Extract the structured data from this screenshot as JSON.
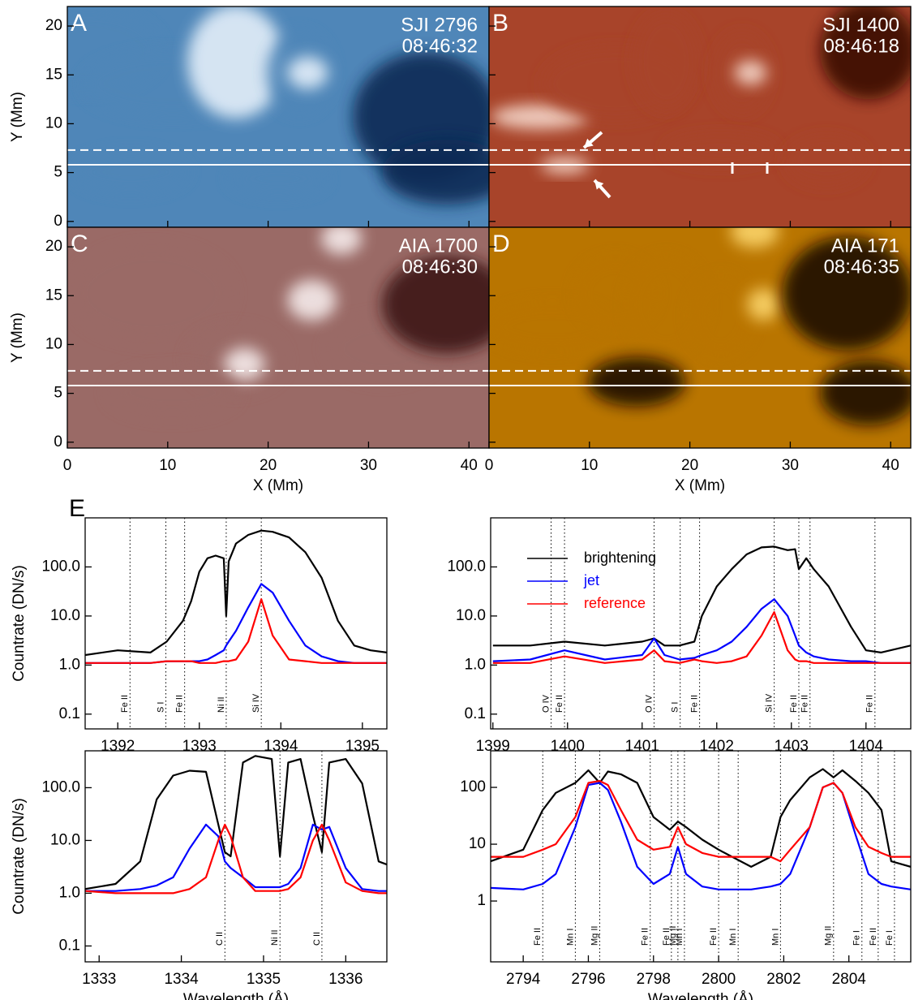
{
  "chart_data": [
    {
      "type": "image",
      "panel_label": "A",
      "channel": "SJI 2796",
      "time": "08:46:32",
      "ylabel": "Y (Mm)",
      "xlim": [
        0,
        42
      ],
      "ylim": [
        -0.6,
        22
      ],
      "xticks": [
        0,
        10,
        20,
        30,
        40
      ],
      "yticks": [
        0,
        5,
        10,
        15,
        20
      ],
      "colormap": [
        "#0a2c55",
        "#4f86b8",
        "#e4eff9"
      ],
      "hlines": [
        {
          "y": 7.3,
          "style": "dashed"
        },
        {
          "y": 5.8,
          "style": "solid"
        }
      ]
    },
    {
      "type": "image",
      "panel_label": "B",
      "channel": "SJI 1400",
      "time": "08:46:18",
      "xlim": [
        0,
        42
      ],
      "ylim": [
        -0.6,
        22
      ],
      "xticks": [
        0,
        10,
        20,
        30,
        40
      ],
      "yticks": [
        0,
        5,
        10,
        15,
        20
      ],
      "colormap": [
        "#3a0c03",
        "#a8442a",
        "#f6d9cc"
      ],
      "hlines": [
        {
          "y": 7.3,
          "style": "dashed"
        },
        {
          "y": 5.8,
          "style": "solid"
        }
      ]
    },
    {
      "type": "image",
      "panel_label": "C",
      "channel": "AIA 1700",
      "time": "08:46:30",
      "ylabel": "Y (Mm)",
      "xlabel": "X (Mm)",
      "xlim": [
        0,
        42
      ],
      "ylim": [
        -0.6,
        22
      ],
      "xticks": [
        0,
        10,
        20,
        30,
        40
      ],
      "yticks": [
        0,
        5,
        10,
        15,
        20
      ],
      "colormap": [
        "#3e1713",
        "#9a6a66",
        "#f5ebeb"
      ],
      "hlines": [
        {
          "y": 7.3,
          "style": "dashed"
        },
        {
          "y": 5.8,
          "style": "solid"
        }
      ]
    },
    {
      "type": "image",
      "panel_label": "D",
      "channel": "AIA 171",
      "time": "08:46:35",
      "xlabel": "X (Mm)",
      "xlim": [
        0,
        42
      ],
      "ylim": [
        -0.6,
        22
      ],
      "xticks": [
        0,
        10,
        20,
        30,
        40
      ],
      "yticks": [
        0,
        5,
        10,
        15,
        20
      ],
      "colormap": [
        "#1a1000",
        "#b97500",
        "#fbd46a"
      ],
      "hlines": [
        {
          "y": 7.3,
          "style": "dashed"
        },
        {
          "y": 5.8,
          "style": "solid"
        }
      ]
    },
    {
      "type": "line",
      "panel_label": "E",
      "ylabel": "Countrate (DN/s)",
      "log_y": true,
      "xlim": [
        1391.6,
        1395.3
      ],
      "ylim": [
        0.05,
        1000
      ],
      "xticks": [
        1392,
        1393,
        1394,
        1395
      ],
      "yticks": [
        0.1,
        {
          "value": 1,
          "label": "1.0"
        },
        {
          "value": 10,
          "label": "10.0"
        },
        {
          "value": 100,
          "label": "100.0"
        }
      ],
      "x": [
        1391.6,
        1392.0,
        1392.4,
        1392.6,
        1392.8,
        1392.9,
        1393.0,
        1393.1,
        1393.2,
        1393.3,
        1393.33,
        1393.36,
        1393.45,
        1393.6,
        1393.76,
        1393.9,
        1394.1,
        1394.3,
        1394.5,
        1394.7,
        1394.9,
        1395.1,
        1395.3
      ],
      "series": [
        {
          "color": "#000000",
          "values": [
            1.6,
            2,
            1.8,
            3,
            8,
            20,
            80,
            150,
            170,
            150,
            10,
            130,
            300,
            450,
            550,
            520,
            400,
            200,
            60,
            8,
            2.5,
            2,
            1.8
          ]
        },
        {
          "color": "#0000ff",
          "values": [
            1.1,
            1.1,
            1.1,
            1.2,
            1.2,
            1.2,
            1.2,
            1.3,
            1.6,
            2,
            2.5,
            3,
            5,
            15,
            45,
            30,
            8,
            2.5,
            1.5,
            1.2,
            1.1,
            1.1,
            1.1
          ]
        },
        {
          "color": "#ff0000",
          "values": [
            1.1,
            1.1,
            1.1,
            1.2,
            1.2,
            1.2,
            1.1,
            1.1,
            1.1,
            1.2,
            1.2,
            1.2,
            1.3,
            3,
            22,
            4,
            1.3,
            1.2,
            1.1,
            1.1,
            1.1,
            1.1,
            1.1
          ]
        }
      ],
      "lines": [
        {
          "label": "Fe II",
          "x": 1392.15
        },
        {
          "label": "S I",
          "x": 1392.59
        },
        {
          "label": "Fe II",
          "x": 1392.82
        },
        {
          "label": "Ni II",
          "x": 1393.33
        },
        {
          "label": "Si IV",
          "x": 1393.76
        }
      ]
    },
    {
      "type": "line",
      "log_y": true,
      "legend": "upper left",
      "xlim": [
        1398.97,
        1404.6
      ],
      "ylim": [
        0.05,
        1000
      ],
      "xticks": [
        1399,
        1400,
        1401,
        1402,
        1403,
        1404
      ],
      "yticks": [
        0.1,
        {
          "value": 1,
          "label": "1.0"
        },
        {
          "value": 10,
          "label": "10.0"
        },
        {
          "value": 100,
          "label": "100.0"
        }
      ],
      "x": [
        1399.0,
        1399.5,
        1399.96,
        1400.5,
        1401.0,
        1401.16,
        1401.3,
        1401.5,
        1401.7,
        1401.8,
        1402.0,
        1402.2,
        1402.4,
        1402.6,
        1402.77,
        1402.95,
        1403.05,
        1403.1,
        1403.2,
        1403.3,
        1403.5,
        1403.8,
        1404.0,
        1404.2,
        1404.6
      ],
      "series": [
        {
          "name": "brightening",
          "color": "#000000",
          "values": [
            2.5,
            2.5,
            3,
            2.5,
            3,
            3.5,
            2.5,
            2.5,
            3,
            10,
            40,
            90,
            180,
            250,
            260,
            220,
            230,
            90,
            150,
            90,
            40,
            6,
            2,
            1.8,
            2.5
          ]
        },
        {
          "name": "jet",
          "color": "#0000ff",
          "values": [
            1.2,
            1.3,
            2,
            1.3,
            1.6,
            3.5,
            1.6,
            1.3,
            1.4,
            1.6,
            2,
            3,
            6,
            14,
            22,
            10,
            4,
            2.5,
            1.8,
            1.5,
            1.3,
            1.2,
            1.2,
            1.1,
            1.1
          ]
        },
        {
          "name": "reference",
          "color": "#ff0000",
          "values": [
            1.1,
            1.1,
            1.5,
            1.1,
            1.3,
            2,
            1.2,
            1.1,
            1.3,
            1.2,
            1.1,
            1.2,
            1.5,
            4,
            12,
            2,
            1.3,
            1.2,
            1.2,
            1.1,
            1.1,
            1.1,
            1.1,
            1.1,
            1.1
          ]
        }
      ],
      "lines": [
        {
          "label": "O IV",
          "x": 1399.78
        },
        {
          "label": "Fe II",
          "x": 1399.96
        },
        {
          "label": "O IV",
          "x": 1401.16
        },
        {
          "label": "S I",
          "x": 1401.51
        },
        {
          "label": "Fe II",
          "x": 1401.77
        },
        {
          "label": "Si IV",
          "x": 1402.77
        },
        {
          "label": "Fe II",
          "x": 1403.1
        },
        {
          "label": "Fe II",
          "x": 1403.25
        },
        {
          "label": "Fe II",
          "x": 1404.12
        }
      ]
    },
    {
      "type": "line",
      "ylabel": "Countrate (DN/s)",
      "xlabel": "Wavelength (Å)",
      "log_y": true,
      "xlim": [
        1332.83,
        1336.5
      ],
      "ylim": [
        0.05,
        500
      ],
      "xticks": [
        1333,
        1334,
        1335,
        1336
      ],
      "yticks": [
        0.1,
        {
          "value": 1,
          "label": "1.0"
        },
        {
          "value": 10,
          "label": "10.0"
        },
        {
          "value": 100,
          "label": "100.0"
        }
      ],
      "x": [
        1332.83,
        1333.2,
        1333.5,
        1333.7,
        1333.9,
        1334.1,
        1334.3,
        1334.45,
        1334.53,
        1334.6,
        1334.75,
        1334.9,
        1335.1,
        1335.2,
        1335.3,
        1335.45,
        1335.6,
        1335.71,
        1335.8,
        1336.0,
        1336.2,
        1336.4,
        1336.5
      ],
      "series": [
        {
          "color": "#000000",
          "values": [
            1.2,
            1.5,
            4,
            60,
            170,
            210,
            200,
            20,
            6,
            5,
            300,
            400,
            350,
            5,
            300,
            350,
            30,
            6,
            300,
            350,
            120,
            4,
            3.5
          ]
        },
        {
          "color": "#0000ff",
          "values": [
            1.1,
            1.1,
            1.2,
            1.4,
            2,
            7,
            20,
            12,
            4,
            3,
            2,
            1.3,
            1.3,
            1.3,
            1.5,
            3,
            20,
            16,
            18,
            3,
            1.2,
            1.1,
            1.1
          ]
        },
        {
          "color": "#ff0000",
          "values": [
            1.1,
            1.0,
            1.0,
            1.0,
            1.0,
            1.2,
            2,
            10,
            20,
            12,
            2,
            1.1,
            1.1,
            1.1,
            1.2,
            2,
            10,
            20,
            10,
            1.6,
            1.1,
            1.0,
            1.0
          ]
        }
      ],
      "lines": [
        {
          "label": "C II",
          "x": 1334.53
        },
        {
          "label": "Ni II",
          "x": 1335.2
        },
        {
          "label": "C II",
          "x": 1335.71
        }
      ]
    },
    {
      "type": "line",
      "xlabel": "Wavelength (Å)",
      "log_y": true,
      "xlim": [
        2793,
        2805.9
      ],
      "ylim": [
        0.085,
        440
      ],
      "xticks": [
        2794,
        2796,
        2798,
        2800,
        2802,
        2804
      ],
      "yticks": [
        1,
        10,
        100
      ],
      "x": [
        2793.0,
        2794.0,
        2794.6,
        2795.0,
        2795.6,
        2796.0,
        2796.35,
        2796.6,
        2797.0,
        2797.5,
        2798.0,
        2798.5,
        2798.75,
        2799.0,
        2799.5,
        2800.0,
        2801.0,
        2801.6,
        2801.9,
        2802.2,
        2802.8,
        2803.2,
        2803.53,
        2803.8,
        2804.2,
        2804.6,
        2805.0,
        2805.3,
        2805.9
      ],
      "series": [
        {
          "color": "#000000",
          "values": [
            5,
            8,
            40,
            80,
            120,
            200,
            120,
            190,
            170,
            120,
            30,
            18,
            25,
            20,
            12,
            8,
            4,
            6,
            30,
            60,
            150,
            210,
            150,
            200,
            130,
            80,
            40,
            5,
            4
          ]
        },
        {
          "color": "#0000ff",
          "values": [
            1.7,
            1.6,
            2,
            3,
            20,
            110,
            120,
            90,
            25,
            4,
            2,
            3,
            9,
            3,
            1.8,
            1.6,
            1.6,
            1.8,
            2,
            3,
            20,
            100,
            120,
            80,
            15,
            3,
            2,
            1.8,
            1.6
          ]
        },
        {
          "color": "#ff0000",
          "values": [
            6,
            6,
            8,
            10,
            30,
            120,
            130,
            110,
            40,
            12,
            8,
            9,
            20,
            10,
            7,
            6,
            6,
            6,
            5,
            8,
            20,
            100,
            120,
            80,
            20,
            9,
            7,
            6,
            6
          ]
        }
      ],
      "lines": [
        {
          "label": "Fe II",
          "x": 2794.6
        },
        {
          "label": "Mn I",
          "x": 2795.6
        },
        {
          "label": "Mg II",
          "x": 2796.35
        },
        {
          "label": "Fe II",
          "x": 2797.9
        },
        {
          "label": "Fe II",
          "x": 2798.55
        },
        {
          "label": "Mg II",
          "x": 2798.75
        },
        {
          "label": "Mn I",
          "x": 2798.95
        },
        {
          "label": "Fe II",
          "x": 2800.0
        },
        {
          "label": "Mn I",
          "x": 2800.6
        },
        {
          "label": "Mn I",
          "x": 2801.9
        },
        {
          "label": "Mg II",
          "x": 2803.53
        },
        {
          "label": "Fe I",
          "x": 2804.4
        },
        {
          "label": "Fe II",
          "x": 2804.9
        },
        {
          "label": "Fe I",
          "x": 2805.4
        }
      ]
    }
  ]
}
